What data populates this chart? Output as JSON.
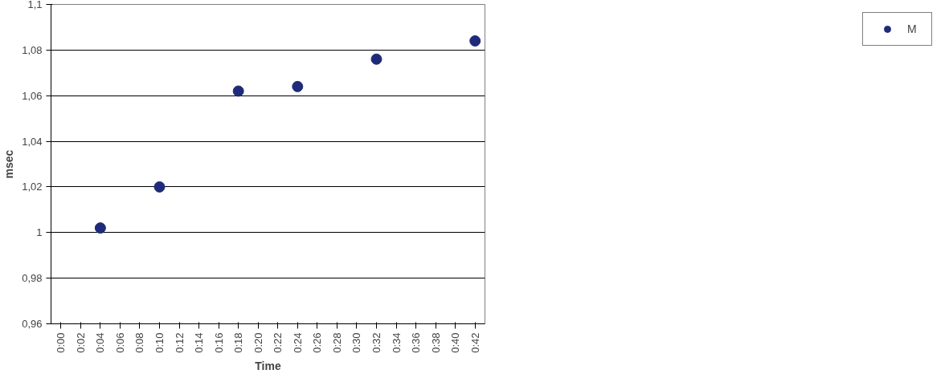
{
  "chart_data": {
    "type": "scatter",
    "xlabel": "Time",
    "ylabel": "msec",
    "x": [
      4,
      10,
      18,
      24,
      32,
      42
    ],
    "series": [
      {
        "name": "M",
        "color": "#1f2a78",
        "values": [
          1.002,
          1.02,
          1.062,
          1.064,
          1.076,
          1.084
        ]
      }
    ],
    "xlim": [
      -1,
      43
    ],
    "xticks": [
      {
        "value": 0,
        "label": "0:00"
      },
      {
        "value": 2,
        "label": "0:02"
      },
      {
        "value": 4,
        "label": "0:04"
      },
      {
        "value": 6,
        "label": "0:06"
      },
      {
        "value": 8,
        "label": "0:08"
      },
      {
        "value": 10,
        "label": "0:10"
      },
      {
        "value": 12,
        "label": "0:12"
      },
      {
        "value": 14,
        "label": "0:14"
      },
      {
        "value": 16,
        "label": "0:16"
      },
      {
        "value": 18,
        "label": "0:18"
      },
      {
        "value": 20,
        "label": "0:20"
      },
      {
        "value": 22,
        "label": "0:22"
      },
      {
        "value": 24,
        "label": "0:24"
      },
      {
        "value": 26,
        "label": "0:26"
      },
      {
        "value": 28,
        "label": "0:28"
      },
      {
        "value": 30,
        "label": "0:30"
      },
      {
        "value": 32,
        "label": "0:32"
      },
      {
        "value": 34,
        "label": "0:34"
      },
      {
        "value": 36,
        "label": "0:36"
      },
      {
        "value": 38,
        "label": "0:38"
      },
      {
        "value": 40,
        "label": "0:40"
      },
      {
        "value": 42,
        "label": "0:42"
      }
    ],
    "ylim": [
      0.96,
      1.1
    ],
    "yticks": [
      {
        "value": 0.96,
        "label": "0,96"
      },
      {
        "value": 0.98,
        "label": "0,98"
      },
      {
        "value": 1,
        "label": "1"
      },
      {
        "value": 1.02,
        "label": "1,02"
      },
      {
        "value": 1.04,
        "label": "1,04"
      },
      {
        "value": 1.06,
        "label": "1,06"
      },
      {
        "value": 1.08,
        "label": "1,08"
      },
      {
        "value": 1.1,
        "label": "1,1"
      }
    ],
    "grid": "y",
    "legend": "right",
    "marker": "circle"
  }
}
